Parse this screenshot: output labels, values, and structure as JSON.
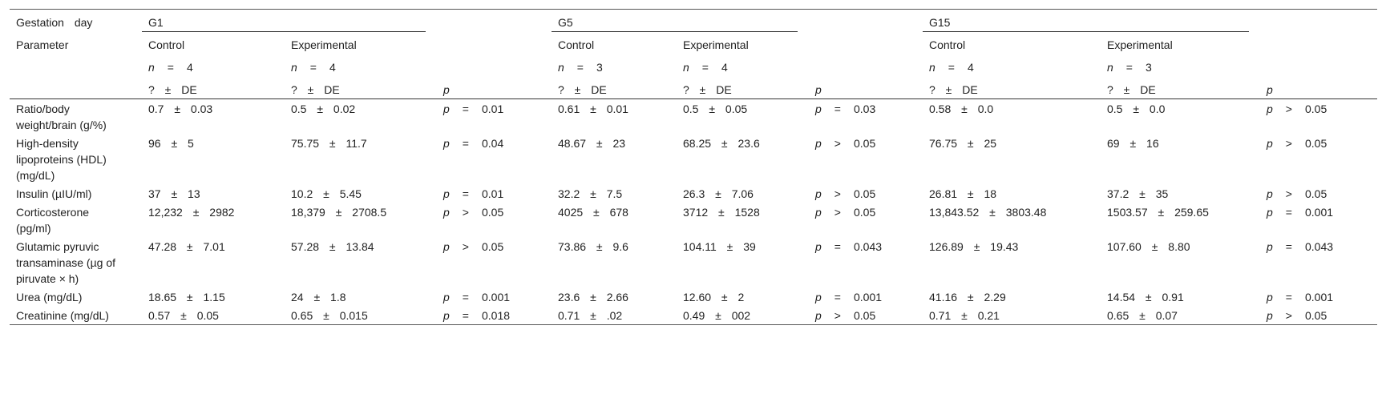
{
  "header": {
    "gestation_day": "Gestation day",
    "parameter": "Parameter",
    "groups": [
      {
        "label": "G1",
        "control": "Control",
        "experimental": "Experimental",
        "n_control": {
          "sym": "n",
          "op": "=",
          "val": "4"
        },
        "n_experimental": {
          "sym": "n",
          "op": "=",
          "val": "4"
        },
        "stat_control": "? ± DE",
        "stat_experimental": "? ± DE",
        "p": "p"
      },
      {
        "label": "G5",
        "control": "Control",
        "experimental": "Experimental",
        "n_control": {
          "sym": "n",
          "op": "=",
          "val": "3"
        },
        "n_experimental": {
          "sym": "n",
          "op": "=",
          "val": "4"
        },
        "stat_control": "? ± DE",
        "stat_experimental": "? ± DE",
        "p": "p"
      },
      {
        "label": "G15",
        "control": "Control",
        "experimental": "Experimental",
        "n_control": {
          "sym": "n",
          "op": "=",
          "val": "4"
        },
        "n_experimental": {
          "sym": "n",
          "op": "=",
          "val": "3"
        },
        "stat_control": "? ± DE",
        "stat_experimental": "? ± DE",
        "p": "p"
      }
    ]
  },
  "rows": [
    {
      "parameter": "Ratio/body weight/brain (g/%)",
      "cells": [
        "0.7 ± 0.03",
        "0.5 ± 0.02",
        {
          "sym": "p",
          "op": "=",
          "val": "0.01"
        },
        "0.61 ± 0.01",
        "0.5 ± 0.05",
        {
          "sym": "p",
          "op": "=",
          "val": "0.03"
        },
        "0.58 ± 0.0",
        "0.5 ± 0.0",
        {
          "sym": "p",
          "op": ">",
          "val": "0.05"
        }
      ]
    },
    {
      "parameter": "High-density lipoproteins (HDL) (mg/dL)",
      "cells": [
        "96 ± 5",
        "75.75 ± 11.7",
        {
          "sym": "p",
          "op": "=",
          "val": "0.04"
        },
        "48.67 ± 23",
        "68.25 ± 23.6",
        {
          "sym": "p",
          "op": ">",
          "val": "0.05"
        },
        "76.75 ± 25",
        "69 ± 16",
        {
          "sym": "p",
          "op": ">",
          "val": "0.05"
        }
      ]
    },
    {
      "parameter": "Insulin (µIU/ml)",
      "cells": [
        "37 ± 13",
        "10.2 ± 5.45",
        {
          "sym": "p",
          "op": "=",
          "val": "0.01"
        },
        "32.2 ± 7.5",
        "26.3 ± 7.06",
        {
          "sym": "p",
          "op": ">",
          "val": "0.05"
        },
        "26.81 ± 18",
        "37.2 ± 35",
        {
          "sym": "p",
          "op": ">",
          "val": "0.05"
        }
      ]
    },
    {
      "parameter": "Corticosterone (pg/ml)",
      "cells": [
        "12,232 ± 2982",
        "18,379 ± 2708.5",
        {
          "sym": "p",
          "op": ">",
          "val": "0.05"
        },
        "4025 ± 678",
        "3712 ± 1528",
        {
          "sym": "p",
          "op": ">",
          "val": "0.05"
        },
        "13,843.52 ± 3803.48",
        "1503.57 ± 259.65",
        {
          "sym": "p",
          "op": "=",
          "val": "0.001"
        }
      ]
    },
    {
      "parameter": "Glutamic pyruvic transaminase (µg of piruvate × h)",
      "cells": [
        "47.28 ± 7.01",
        "57.28 ± 13.84",
        {
          "sym": "p",
          "op": ">",
          "val": "0.05"
        },
        "73.86 ± 9.6",
        "104.11 ± 39",
        {
          "sym": "p",
          "op": "=",
          "val": "0.043"
        },
        "126.89 ± 19.43",
        "107.60 ± 8.80",
        {
          "sym": "p",
          "op": "=",
          "val": "0.043"
        }
      ]
    },
    {
      "parameter": "Urea (mg/dL)",
      "cells": [
        "18.65 ± 1.15",
        "24 ± 1.8",
        {
          "sym": "p",
          "op": "=",
          "val": "0.001"
        },
        "23.6 ± 2.66",
        "12.60 ± 2",
        {
          "sym": "p",
          "op": "=",
          "val": "0.001"
        },
        "41.16 ± 2.29",
        "14.54 ± 0.91",
        {
          "sym": "p",
          "op": "=",
          "val": "0.001"
        }
      ]
    },
    {
      "parameter": "Creatinine (mg/dL)",
      "cells": [
        "0.57 ± 0.05",
        "0.65 ± 0.015",
        {
          "sym": "p",
          "op": "=",
          "val": "0.018"
        },
        "0.71 ± .02",
        "0.49 ± 002",
        {
          "sym": "p",
          "op": ">",
          "val": "0.05"
        },
        "0.71 ± 0.21",
        "0.65 ± 0.07",
        {
          "sym": "p",
          "op": ">",
          "val": "0.05"
        }
      ]
    }
  ]
}
